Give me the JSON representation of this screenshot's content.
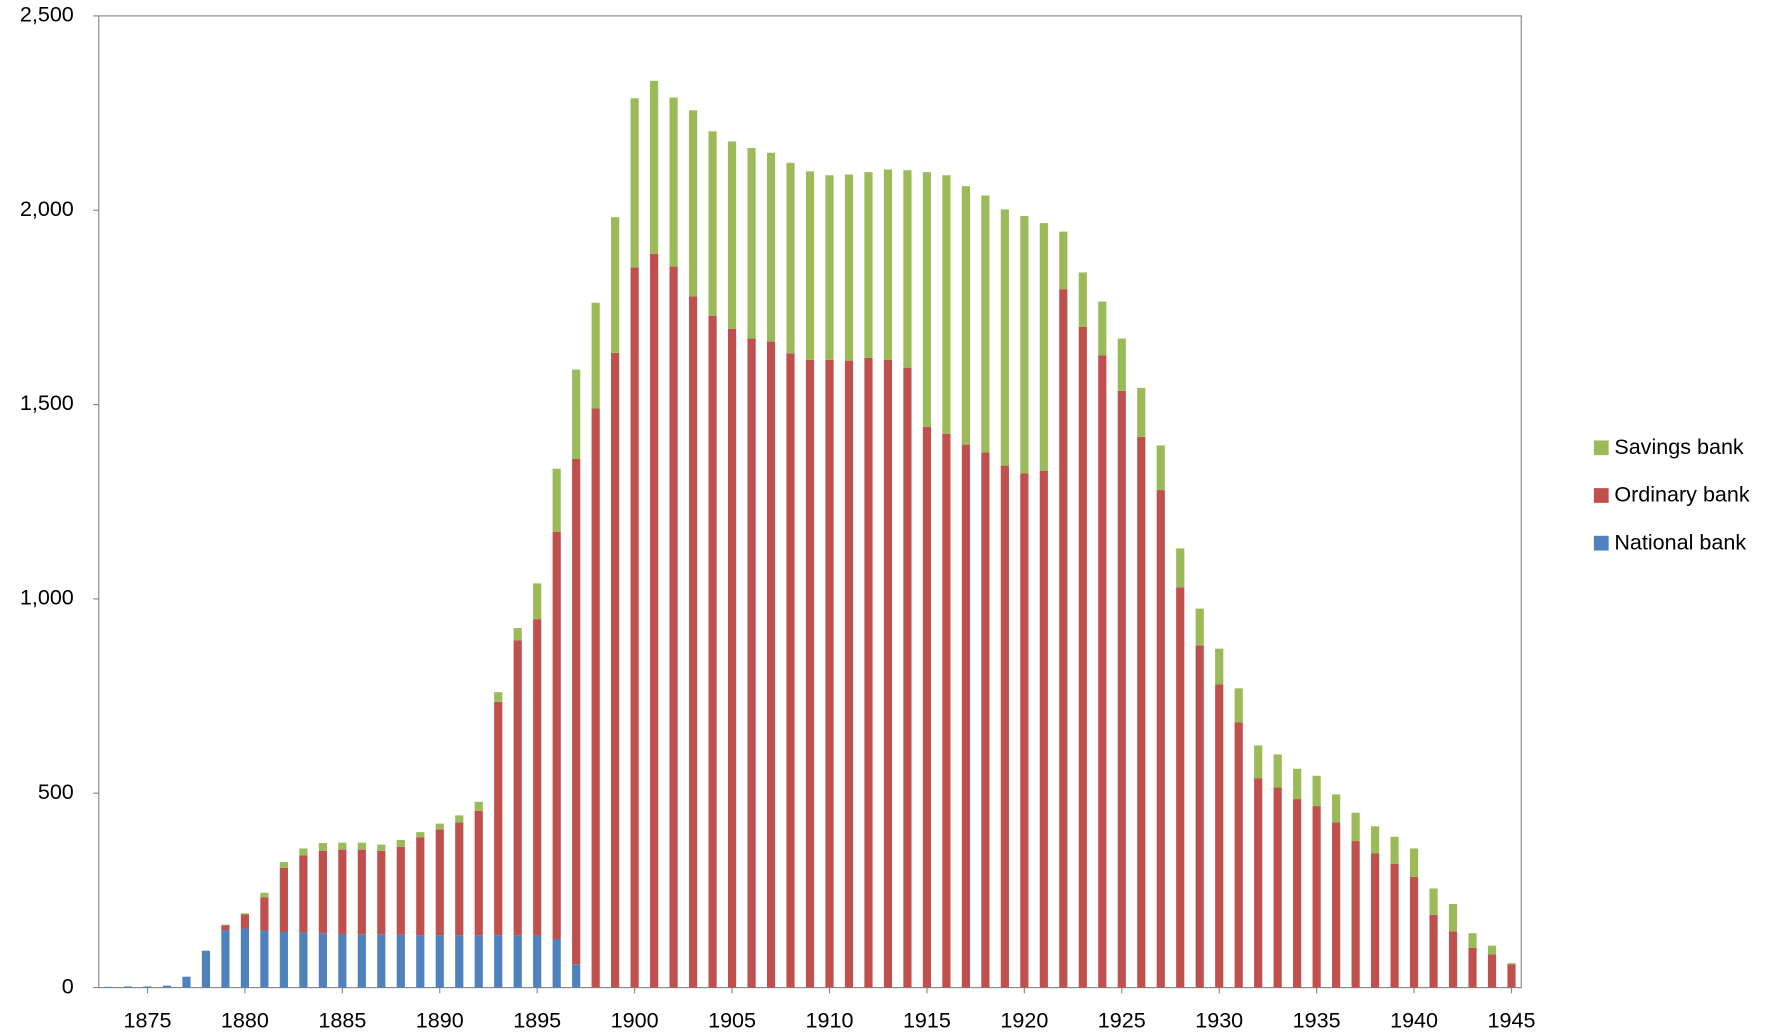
{
  "chart_data": {
    "type": "stacked_bar",
    "x": [
      1873,
      1874,
      1875,
      1876,
      1877,
      1878,
      1879,
      1880,
      1881,
      1882,
      1883,
      1884,
      1885,
      1886,
      1887,
      1888,
      1889,
      1890,
      1891,
      1892,
      1893,
      1894,
      1895,
      1896,
      1897,
      1898,
      1899,
      1900,
      1901,
      1902,
      1903,
      1904,
      1905,
      1906,
      1907,
      1908,
      1909,
      1910,
      1911,
      1912,
      1913,
      1914,
      1915,
      1916,
      1917,
      1918,
      1919,
      1920,
      1921,
      1922,
      1923,
      1924,
      1925,
      1926,
      1927,
      1928,
      1929,
      1930,
      1931,
      1932,
      1933,
      1934,
      1935,
      1936,
      1937,
      1938,
      1939,
      1940,
      1941,
      1942,
      1943,
      1944,
      1945
    ],
    "series": [
      {
        "name": "National bank",
        "color": "#4f81bd",
        "values": [
          2,
          3,
          3,
          5,
          28,
          95,
          148,
          152,
          147,
          143,
          142,
          140,
          138,
          137,
          137,
          136,
          135,
          135,
          135,
          135,
          135,
          135,
          133,
          125,
          60,
          0,
          0,
          0,
          0,
          0,
          0,
          0,
          0,
          0,
          0,
          0,
          0,
          0,
          0,
          0,
          0,
          0,
          0,
          0,
          0,
          0,
          0,
          0,
          0,
          0,
          0,
          0,
          0,
          0,
          0,
          0,
          0,
          0,
          0,
          0,
          0,
          0,
          0,
          0,
          0,
          0,
          0,
          0,
          0,
          0,
          0,
          0,
          0
        ]
      },
      {
        "name": "Ordinary bank",
        "color": "#c0504d",
        "values": [
          0,
          0,
          0,
          0,
          0,
          0,
          12,
          36,
          85,
          165,
          198,
          212,
          217,
          218,
          215,
          226,
          252,
          272,
          290,
          320,
          600,
          758,
          815,
          1048,
          1300,
          1490,
          1633,
          1853,
          1888,
          1855,
          1778,
          1728,
          1695,
          1670,
          1662,
          1632,
          1615,
          1615,
          1613,
          1620,
          1615,
          1595,
          1443,
          1425,
          1397,
          1377,
          1343,
          1323,
          1330,
          1797,
          1700,
          1627,
          1535,
          1417,
          1280,
          1030,
          880,
          780,
          682,
          538,
          515,
          485,
          467,
          425,
          377,
          345,
          318,
          285,
          187,
          145,
          102,
          85,
          60
        ]
      },
      {
        "name": "Savings bank",
        "color": "#9bbb59",
        "values": [
          0,
          0,
          0,
          0,
          0,
          0,
          2,
          3,
          12,
          15,
          18,
          20,
          18,
          18,
          16,
          18,
          13,
          15,
          18,
          23,
          25,
          32,
          92,
          162,
          230,
          272,
          349,
          435,
          445,
          435,
          479,
          475,
          482,
          490,
          486,
          490,
          485,
          475,
          479,
          478,
          490,
          508,
          655,
          665,
          665,
          661,
          659,
          662,
          637,
          148,
          140,
          138,
          135,
          126,
          115,
          100,
          95,
          92,
          88,
          85,
          85,
          78,
          78,
          72,
          73,
          70,
          70,
          73,
          68,
          70,
          38,
          23,
          3
        ]
      }
    ],
    "xlim": [
      1872.5,
      1945.5
    ],
    "xticks": [
      1875,
      1880,
      1885,
      1890,
      1895,
      1900,
      1905,
      1910,
      1915,
      1920,
      1925,
      1930,
      1935,
      1940,
      1945
    ],
    "ylim": [
      0,
      2500
    ],
    "yticks": [
      0,
      500,
      {
        "value": 1000,
        "label": "1,000"
      },
      {
        "value": 1500,
        "label": "1,500"
      },
      {
        "value": 2000,
        "label": "2,000"
      },
      {
        "value": 2500,
        "label": "2,500"
      }
    ],
    "legend": "right"
  }
}
